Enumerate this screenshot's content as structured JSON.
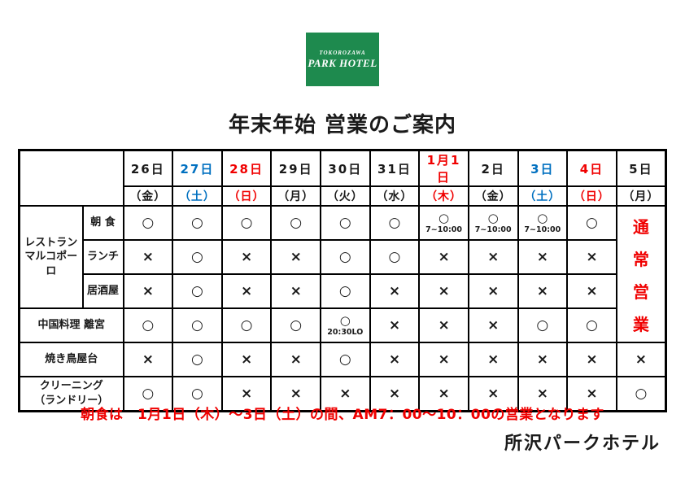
{
  "logo": {
    "brand_top": "TOKOROZAWA",
    "brand_name": "PARK HOTEL",
    "bg_color": "#1e8a4e"
  },
  "title": "年末年始 営業のご案内",
  "colors": {
    "black": "#1a1a1a",
    "red": "#f00000",
    "blue": "#0070c0"
  },
  "table": {
    "columns": [
      {
        "date": "26日",
        "weekday": "（金）",
        "color": "black"
      },
      {
        "date": "27日",
        "weekday": "（土）",
        "color": "blue"
      },
      {
        "date": "28日",
        "weekday": "（日）",
        "color": "red"
      },
      {
        "date": "29日",
        "weekday": "（月）",
        "color": "black"
      },
      {
        "date": "30日",
        "weekday": "（火）",
        "color": "black"
      },
      {
        "date": "31日",
        "weekday": "（水）",
        "color": "black"
      },
      {
        "date": "1月1日",
        "weekday": "（木）",
        "color": "red"
      },
      {
        "date": "2日",
        "weekday": "（金）",
        "color": "black"
      },
      {
        "date": "3日",
        "weekday": "（土）",
        "color": "blue"
      },
      {
        "date": "4日",
        "weekday": "（日）",
        "color": "red"
      },
      {
        "date": "5日",
        "weekday": "（月）",
        "color": "black"
      }
    ],
    "rows": [
      {
        "type": "sub",
        "group": {
          "text": "レストラン\nマルコポーロ",
          "rowspan": 3
        },
        "label": "朝 食",
        "cells": [
          "○",
          "○",
          "○",
          "○",
          "○",
          "○",
          {
            "mark": "○",
            "note": "7~10:00"
          },
          {
            "mark": "○",
            "note": "7~10:00"
          },
          {
            "mark": "○",
            "note": "7~10:00"
          },
          "○",
          {
            "vertical": true,
            "text": "通常営業",
            "rowspan": 4
          }
        ]
      },
      {
        "type": "sub",
        "label": "ランチ",
        "cells": [
          "×",
          "○",
          "×",
          "×",
          "○",
          "○",
          "×",
          "×",
          "×",
          "×"
        ]
      },
      {
        "type": "sub",
        "label": "居酒屋",
        "cells": [
          "×",
          "○",
          "×",
          "×",
          "○",
          "×",
          "×",
          "×",
          "×",
          "×"
        ]
      },
      {
        "type": "full",
        "label": "中国料理 離宮",
        "cells": [
          "○",
          "○",
          "○",
          "○",
          {
            "mark": "○",
            "note": "20:30LO"
          },
          "×",
          "×",
          "×",
          "○",
          "○"
        ]
      },
      {
        "type": "full",
        "label": "焼き鳥屋台",
        "cells": [
          "×",
          "○",
          "×",
          "×",
          "○",
          "×",
          "×",
          "×",
          "×",
          "×",
          "×"
        ]
      },
      {
        "type": "full",
        "label": "クリーニング\n（ランドリー）",
        "cells": [
          "○",
          "○",
          "×",
          "×",
          "×",
          "×",
          "×",
          "×",
          "×",
          "×",
          "○"
        ]
      }
    ]
  },
  "footnote": "朝食は　1月1日（木）～3日（土）の間、AM7：00～10：00の営業となります",
  "signature": "所沢パークホテル"
}
